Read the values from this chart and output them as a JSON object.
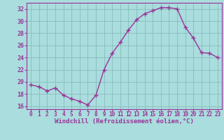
{
  "x": [
    0,
    1,
    2,
    3,
    4,
    5,
    6,
    7,
    8,
    9,
    10,
    11,
    12,
    13,
    14,
    15,
    16,
    17,
    18,
    19,
    20,
    21,
    22,
    23
  ],
  "y": [
    19.5,
    19.2,
    18.5,
    19.0,
    17.8,
    17.2,
    16.8,
    16.2,
    17.8,
    22.0,
    24.7,
    26.5,
    28.5,
    30.2,
    31.2,
    31.7,
    32.2,
    32.2,
    32.0,
    29.0,
    27.2,
    24.8,
    24.7,
    24.0
  ],
  "line_color": "#993399",
  "marker": "+",
  "marker_size": 4,
  "bg_color": "#aadddd",
  "grid_color": "#88bbbb",
  "ylim": [
    15.5,
    33.0
  ],
  "xlim": [
    -0.5,
    23.5
  ],
  "yticks": [
    16,
    18,
    20,
    22,
    24,
    26,
    28,
    30,
    32
  ],
  "xticks": [
    0,
    1,
    2,
    3,
    4,
    5,
    6,
    7,
    8,
    9,
    10,
    11,
    12,
    13,
    14,
    15,
    16,
    17,
    18,
    19,
    20,
    21,
    22,
    23
  ],
  "xlabel": "Windchill (Refroidissement éolien,°C)",
  "tick_color": "#993399",
  "label_color": "#993399",
  "axis_color": "#993399"
}
